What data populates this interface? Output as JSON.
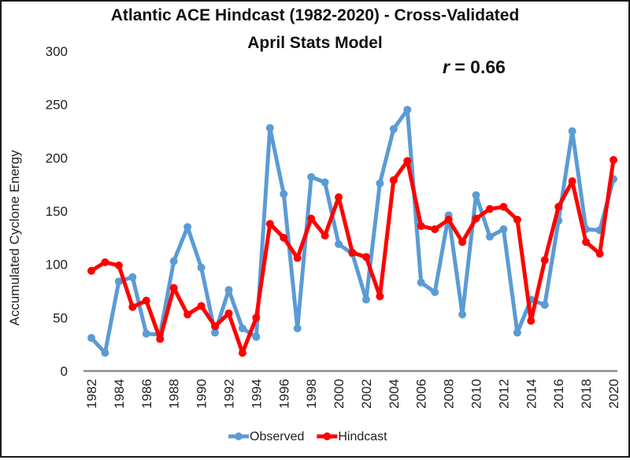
{
  "chart_data": {
    "type": "line",
    "title": "Atlantic ACE Hindcast (1982-2020) - Cross-Validated",
    "subtitle": "April Stats Model",
    "annotation": {
      "variable": "r",
      "text": " = 0.66",
      "value": 0.66
    },
    "xlabel": "",
    "ylabel": "Accumulated Cyclone Energy",
    "ylim": [
      0,
      300
    ],
    "yticks": [
      0,
      50,
      100,
      150,
      200,
      250,
      300
    ],
    "x": [
      1982,
      1983,
      1984,
      1985,
      1986,
      1987,
      1988,
      1989,
      1990,
      1991,
      1992,
      1993,
      1994,
      1995,
      1996,
      1997,
      1998,
      1999,
      2000,
      2001,
      2002,
      2003,
      2004,
      2005,
      2006,
      2007,
      2008,
      2009,
      2010,
      2011,
      2012,
      2013,
      2014,
      2015,
      2016,
      2017,
      2018,
      2019,
      2020
    ],
    "xtick_labels": [
      "1982",
      "1984",
      "1986",
      "1988",
      "1990",
      "1992",
      "1994",
      "1996",
      "1998",
      "2000",
      "2002",
      "2004",
      "2006",
      "2008",
      "2010",
      "2012",
      "2014",
      "2016",
      "2018",
      "2020"
    ],
    "grid": false,
    "legend_position": "bottom",
    "series": [
      {
        "name": "Observed",
        "color": "#5b9bd5",
        "values": [
          31,
          17,
          84,
          88,
          35,
          34,
          103,
          135,
          97,
          36,
          76,
          40,
          32,
          228,
          166,
          40,
          182,
          177,
          119,
          110,
          67,
          176,
          227,
          245,
          83,
          74,
          146,
          53,
          165,
          126,
          133,
          36,
          67,
          62,
          141,
          225,
          133,
          132,
          180
        ]
      },
      {
        "name": "Hindcast",
        "color": "#ff0000",
        "values": [
          94,
          102,
          99,
          60,
          66,
          30,
          78,
          53,
          61,
          42,
          54,
          17,
          50,
          138,
          125,
          106,
          143,
          127,
          163,
          111,
          107,
          70,
          179,
          197,
          136,
          133,
          142,
          121,
          143,
          152,
          154,
          142,
          47,
          104,
          154,
          178,
          121,
          110,
          198
        ]
      }
    ]
  }
}
